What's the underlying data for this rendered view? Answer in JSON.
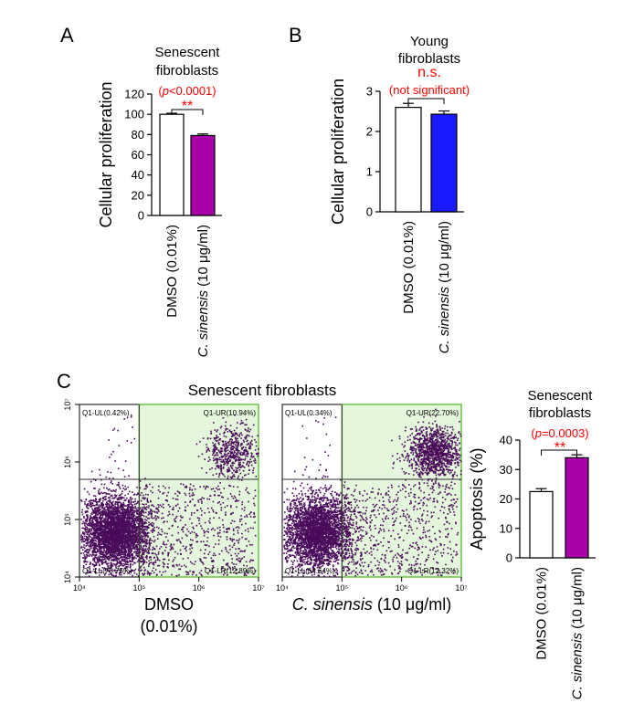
{
  "colors": {
    "axis": "#000000",
    "annotation": "#ff0000",
    "purple_bar": "#aa00aa",
    "blue_bar": "#1a1aff",
    "gate_fill": "#e4f6dc",
    "gate_border": "#6cc24a",
    "dot": "#4a0a5a"
  },
  "chart_data": [
    {
      "id": "A",
      "panel_label": "A",
      "type": "bar",
      "title_line1": "Senescent",
      "title_line2": "fibroblasts",
      "ylabel": "Cellular proliferation",
      "ylim": [
        0,
        120
      ],
      "yticks": [
        0,
        20,
        40,
        60,
        80,
        100,
        120
      ],
      "categories": [
        "DMSO (0.01%)",
        "C. sinensis (10 μg/ml)"
      ],
      "category_prefix": [
        "DMSO (0.01%)",
        "C. sinensis"
      ],
      "category_suffix": [
        "",
        " (10 μg/ml)"
      ],
      "values": [
        100,
        79
      ],
      "errors": [
        1,
        1.5
      ],
      "fills": [
        "#ffffff",
        "#aa00aa"
      ],
      "pvalue_open": "(",
      "pvalue_p": "p",
      "pvalue_rest": "<0.0001)",
      "significance": "**"
    },
    {
      "id": "B",
      "panel_label": "B",
      "type": "bar",
      "title_line1": "Young",
      "title_line2": "fibroblasts",
      "ylabel": "Cellular proliferation",
      "ylim": [
        0,
        3
      ],
      "yticks": [
        0,
        1,
        2,
        3
      ],
      "categories": [
        "DMSO (0.01%)",
        "C. sinensis (10 μg/ml)"
      ],
      "category_prefix": [
        "DMSO (0.01%)",
        "C. sinensis"
      ],
      "category_suffix": [
        "",
        " (10 μg/ml)"
      ],
      "values": [
        2.6,
        2.43
      ],
      "errors": [
        0.1,
        0.08
      ],
      "fills": [
        "#ffffff",
        "#1a1aff"
      ],
      "significance": "n.s.",
      "significance_note": "(not significant)"
    },
    {
      "id": "C",
      "panel_label": "C",
      "type": "scatter",
      "title": "Senescent fibroblasts",
      "xaxis": {
        "scale": "log",
        "range": [
          10000,
          10000000
        ],
        "ticks": [
          "10⁴",
          "10⁵",
          "10⁶",
          "10⁷"
        ]
      },
      "yaxis": {
        "scale": "log",
        "range": [
          10000,
          10000000
        ],
        "ticks": [
          "10⁴",
          "10⁵",
          "10⁶",
          "10⁷"
        ]
      },
      "gate_x": 100000,
      "gate_y": 500000,
      "plots": [
        {
          "name": "DMSO",
          "caption_line1": "DMSO",
          "caption_line2": "(0.01%)",
          "quadrants": {
            "UL": "Q1-UL(0.42%)",
            "UR": "Q1-UR(10.94%)",
            "LL": "Q1-LL(75.75%)",
            "LR": "Q1-LR(12.89%)"
          }
        },
        {
          "name": "C. sinensis (10 μg/ml)",
          "caption_prefix": "C. sinensis",
          "caption_suffix": " (10 μg/ml)",
          "quadrants": {
            "UL": "Q1-UL(0.34%)",
            "UR": "Q1-UR(22.70%)",
            "LL": "Q1-LL(64.64%)",
            "LR": "Q1-LR(12.32%)"
          }
        }
      ]
    },
    {
      "id": "C-bar",
      "type": "bar",
      "title_line1": "Senescent",
      "title_line2": "fibroblasts",
      "ylabel": "Apoptosis (%)",
      "ylim": [
        0,
        40
      ],
      "yticks": [
        0,
        10,
        20,
        30,
        40
      ],
      "categories": [
        "DMSO (0.01%)",
        "C. sinensis (10 μg/ml)"
      ],
      "category_prefix": [
        "DMSO (0.01%)",
        "C. sinensis"
      ],
      "category_suffix": [
        "",
        " (10 μg/ml)"
      ],
      "values": [
        22.5,
        34
      ],
      "errors": [
        1,
        1
      ],
      "fills": [
        "#ffffff",
        "#aa00aa"
      ],
      "pvalue_open": "(",
      "pvalue_p": "p",
      "pvalue_rest": "=0.0003)",
      "significance": "**"
    }
  ]
}
